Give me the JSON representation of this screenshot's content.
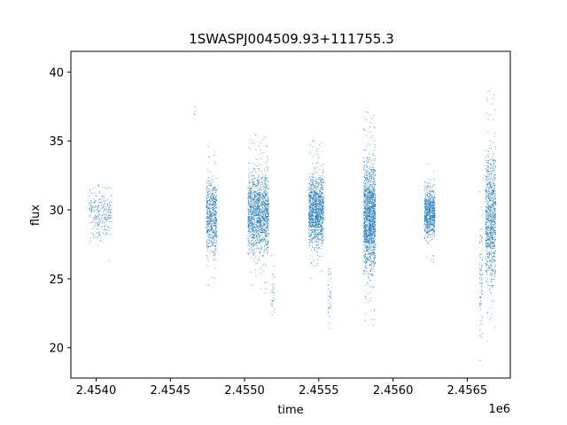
{
  "chart_data": {
    "type": "scatter",
    "title": "1SWASPJ004509.93+111755.3",
    "xlabel": "time",
    "ylabel": "flux",
    "x_offset_label": "1e6",
    "xlim": [
      2453830,
      2456790
    ],
    "ylim": [
      17.8,
      41.5
    ],
    "xticks": [
      2.454,
      2.4545,
      2.455,
      2.4555,
      2.456,
      2.4565
    ],
    "xtick_labels": [
      "2.4540",
      "2.4545",
      "2.4550",
      "2.4555",
      "2.4560",
      "2.4565"
    ],
    "yticks": [
      20,
      25,
      30,
      35,
      40
    ],
    "ytick_labels": [
      "20",
      "25",
      "30",
      "35",
      "40"
    ],
    "grid": false,
    "legend": "none",
    "marker_color": "#1f77b4",
    "series": [
      {
        "observing_seasons": [
          {
            "x_start": 2453950,
            "x_end": 2454100,
            "y_center": 29.8,
            "y_spread": 1.6,
            "n_points": 260
          },
          {
            "x_start": 2454660,
            "x_end": 2454665,
            "y_center": 37.0,
            "y_spread": 0.6,
            "n_points": 4
          },
          {
            "x_start": 2454740,
            "x_end": 2454810,
            "y_center": 29.5,
            "y_spread": 2.4,
            "n_points": 600
          },
          {
            "x_start": 2455020,
            "x_end": 2455160,
            "y_center": 29.8,
            "y_spread": 2.6,
            "n_points": 1400
          },
          {
            "x_start": 2455180,
            "x_end": 2455200,
            "y_center": 24.0,
            "y_spread": 1.5,
            "n_points": 30
          },
          {
            "x_start": 2455430,
            "x_end": 2455530,
            "y_center": 30.0,
            "y_spread": 2.3,
            "n_points": 1200
          },
          {
            "x_start": 2455560,
            "x_end": 2455580,
            "y_center": 24.0,
            "y_spread": 2.0,
            "n_points": 35
          },
          {
            "x_start": 2455800,
            "x_end": 2455880,
            "y_center": 29.5,
            "y_spread": 3.5,
            "n_points": 1500
          },
          {
            "x_start": 2456210,
            "x_end": 2456280,
            "y_center": 29.8,
            "y_spread": 1.6,
            "n_points": 700
          },
          {
            "x_start": 2456580,
            "x_end": 2456600,
            "y_center": 25.0,
            "y_spread": 3.5,
            "n_points": 80
          },
          {
            "x_start": 2456620,
            "x_end": 2456690,
            "y_center": 29.5,
            "y_spread": 4.2,
            "n_points": 900
          }
        ]
      }
    ]
  }
}
